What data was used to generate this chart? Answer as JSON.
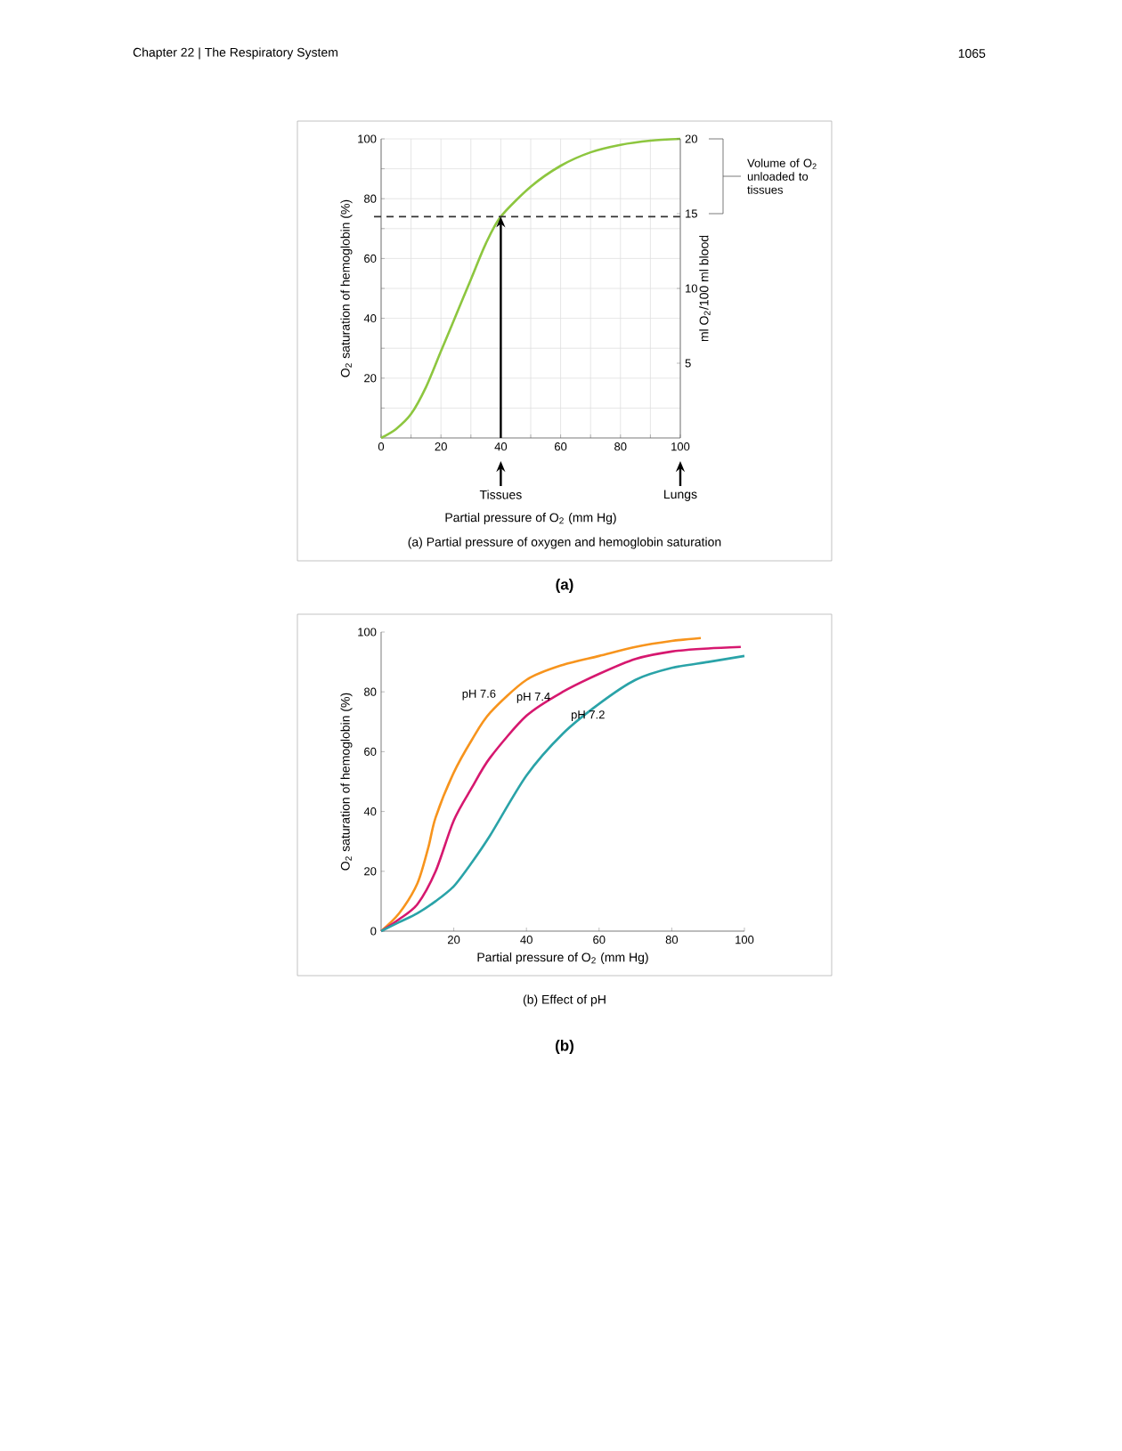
{
  "chart_data": [
    {
      "type": "line",
      "xlabel": "Partial pressure of O$_{2}$ (mm Hg)",
      "ylabel": "O$_{2}$ saturation of hemoglobin (%)",
      "y2label": "ml O$_{2}$/100 ml blood",
      "x": [
        0,
        5,
        10,
        15,
        20,
        25,
        30,
        35,
        40,
        50,
        60,
        70,
        80,
        90,
        100
      ],
      "series": [
        {
          "color": "#8dc63f",
          "values": [
            0,
            3,
            8,
            17,
            29,
            41,
            53,
            65,
            74,
            84,
            91,
            95.5,
            98,
            99.4,
            100
          ]
        }
      ],
      "xlim": [
        0,
        100
      ],
      "ylim": [
        0,
        100
      ],
      "y2lim": [
        0,
        20
      ],
      "xticks": [
        0,
        {
          "value": 10,
          "label": null
        },
        20,
        {
          "value": 30,
          "label": null
        },
        40,
        {
          "value": 50,
          "label": null
        },
        60,
        {
          "value": 70,
          "label": null
        },
        80,
        {
          "value": 90,
          "label": null
        },
        100
      ],
      "yticks": [
        {
          "value": 10,
          "label": null
        },
        20,
        {
          "value": 30,
          "label": null
        },
        40,
        {
          "value": 50,
          "label": null
        },
        60,
        {
          "value": 70,
          "label": null
        },
        80,
        {
          "value": 90,
          "label": null
        },
        100
      ],
      "y2ticks": [
        5,
        10,
        15,
        20
      ],
      "ref_lines": [
        {
          "axis": "y",
          "value": 74,
          "line_style": "dashed",
          "color": "#333333"
        }
      ],
      "annotations": [
        "Chapter 22 | The Respiratory System",
        "1065",
        "Tissues",
        "Lungs",
        "Volume of O$_{2}$ unloaded to tissues",
        "(a) Partial pressure of oxygen and hemoglobin saturation",
        "(a)"
      ],
      "grid": true,
      "marker": "none",
      "line_style": "solid"
    },
    {
      "type": "line",
      "xlabel": "Partial pressure of O$_{2}$ (mm Hg)",
      "ylabel": "O$_{2}$ saturation of hemoglobin (%)",
      "series": [
        {
          "name": "pH 7.6",
          "color": "#f7941d",
          "x": [
            0,
            5,
            10,
            13,
            15,
            20,
            25,
            30,
            40,
            50,
            60,
            70,
            80,
            88
          ],
          "values": [
            0,
            6,
            16,
            28,
            38,
            53,
            64,
            73,
            84,
            89,
            92,
            95,
            97,
            98
          ]
        },
        {
          "name": "pH 7.4",
          "color": "#d6186f",
          "x": [
            0,
            5,
            10,
            15,
            20,
            25,
            30,
            40,
            50,
            60,
            70,
            80,
            90,
            99
          ],
          "values": [
            0,
            4,
            9,
            20,
            37,
            48,
            58,
            72,
            80,
            86,
            91,
            93.5,
            94.5,
            95
          ]
        },
        {
          "name": "pH 7.2",
          "color": "#2aa3a8",
          "x": [
            0,
            5,
            10,
            15,
            20,
            25,
            30,
            40,
            50,
            60,
            70,
            80,
            90,
            100
          ],
          "values": [
            0,
            3,
            6,
            10,
            15,
            23,
            32,
            52,
            66,
            76,
            84,
            88,
            90,
            92
          ]
        }
      ],
      "xlim": [
        0,
        100
      ],
      "ylim": [
        0,
        100
      ],
      "xticks": [
        20,
        40,
        60,
        80,
        100
      ],
      "yticks": [
        0,
        20,
        40,
        60,
        80,
        100
      ],
      "annotations": [
        "(b) Effect of pH",
        "(b)"
      ],
      "grid": false,
      "marker": "none",
      "line_style": "solid"
    }
  ]
}
